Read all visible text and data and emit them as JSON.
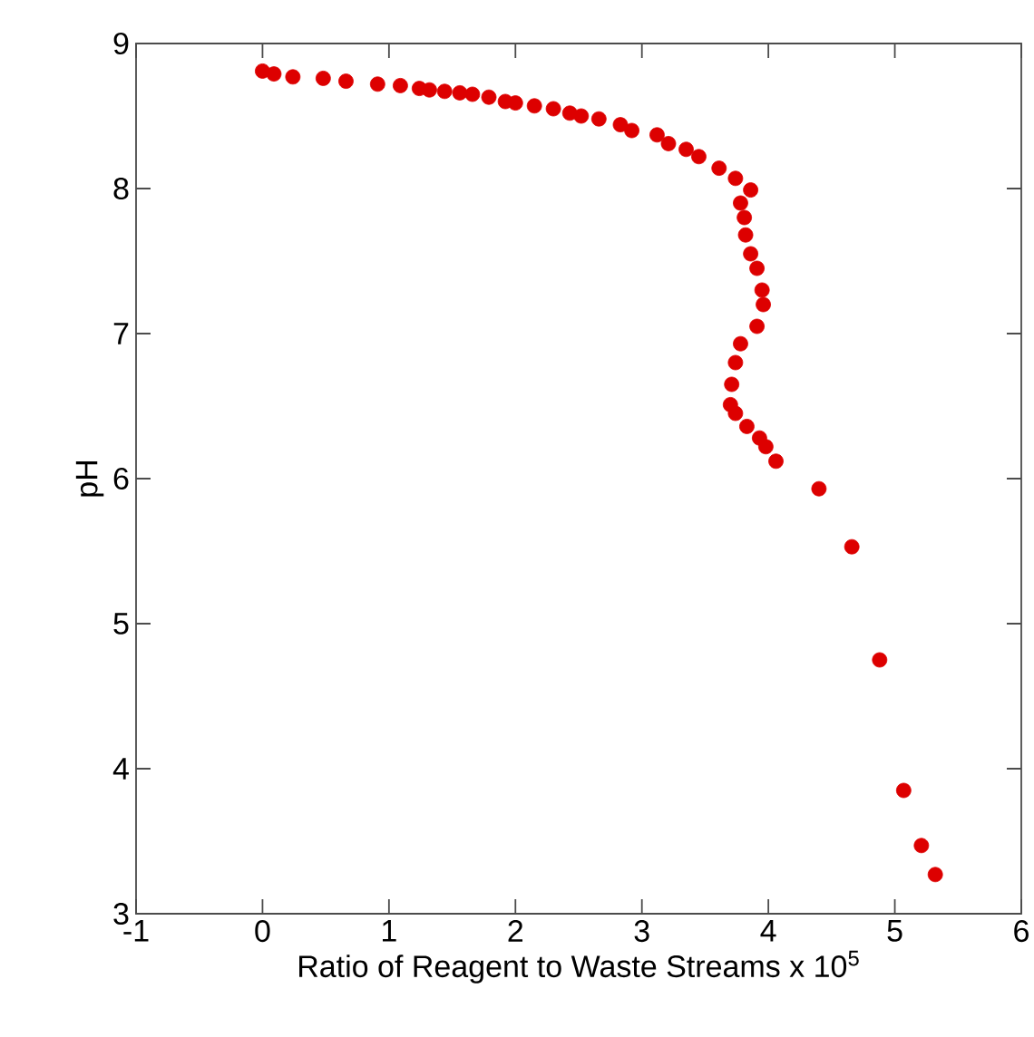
{
  "chart_data": {
    "type": "scatter",
    "xlabel": "Ratio of Reagent to Waste Streams x 10$^{5}$",
    "ylabel": "pH",
    "xlim": [
      -1,
      6
    ],
    "ylim": [
      3,
      9
    ],
    "xticks": [
      -1,
      0,
      1,
      2,
      3,
      4,
      5,
      6
    ],
    "yticks": [
      3,
      4,
      5,
      6,
      7,
      8,
      9
    ],
    "grid": false,
    "series": [
      {
        "color": "#dd0000",
        "x": [
          0,
          0.09,
          0.24,
          0.48,
          0.66,
          0.91,
          1.09,
          1.24,
          1.32,
          1.44,
          1.56,
          1.66,
          1.79,
          1.92,
          2.0,
          2.15,
          2.3,
          2.43,
          2.52,
          2.66,
          2.83,
          2.92,
          3.12,
          3.21,
          3.35,
          3.45,
          3.61,
          3.74,
          3.86,
          3.78,
          3.81,
          3.82,
          3.86,
          3.91,
          3.95,
          3.96,
          3.91,
          3.78,
          3.74,
          3.71,
          3.7,
          3.74,
          3.83,
          3.93,
          3.98,
          4.06,
          4.4,
          4.66,
          4.88,
          5.07,
          5.21,
          5.32
        ],
        "values": [
          8.81,
          8.79,
          8.77,
          8.76,
          8.74,
          8.72,
          8.71,
          8.69,
          8.68,
          8.67,
          8.66,
          8.65,
          8.63,
          8.6,
          8.59,
          8.57,
          8.55,
          8.52,
          8.5,
          8.48,
          8.44,
          8.4,
          8.37,
          8.31,
          8.27,
          8.22,
          8.14,
          8.07,
          7.99,
          7.9,
          7.8,
          7.68,
          7.55,
          7.45,
          7.3,
          7.2,
          7.05,
          6.93,
          6.8,
          6.65,
          6.51,
          6.45,
          6.36,
          6.28,
          6.22,
          6.12,
          5.93,
          5.53,
          4.75,
          3.85,
          3.47,
          3.27
        ]
      }
    ]
  }
}
